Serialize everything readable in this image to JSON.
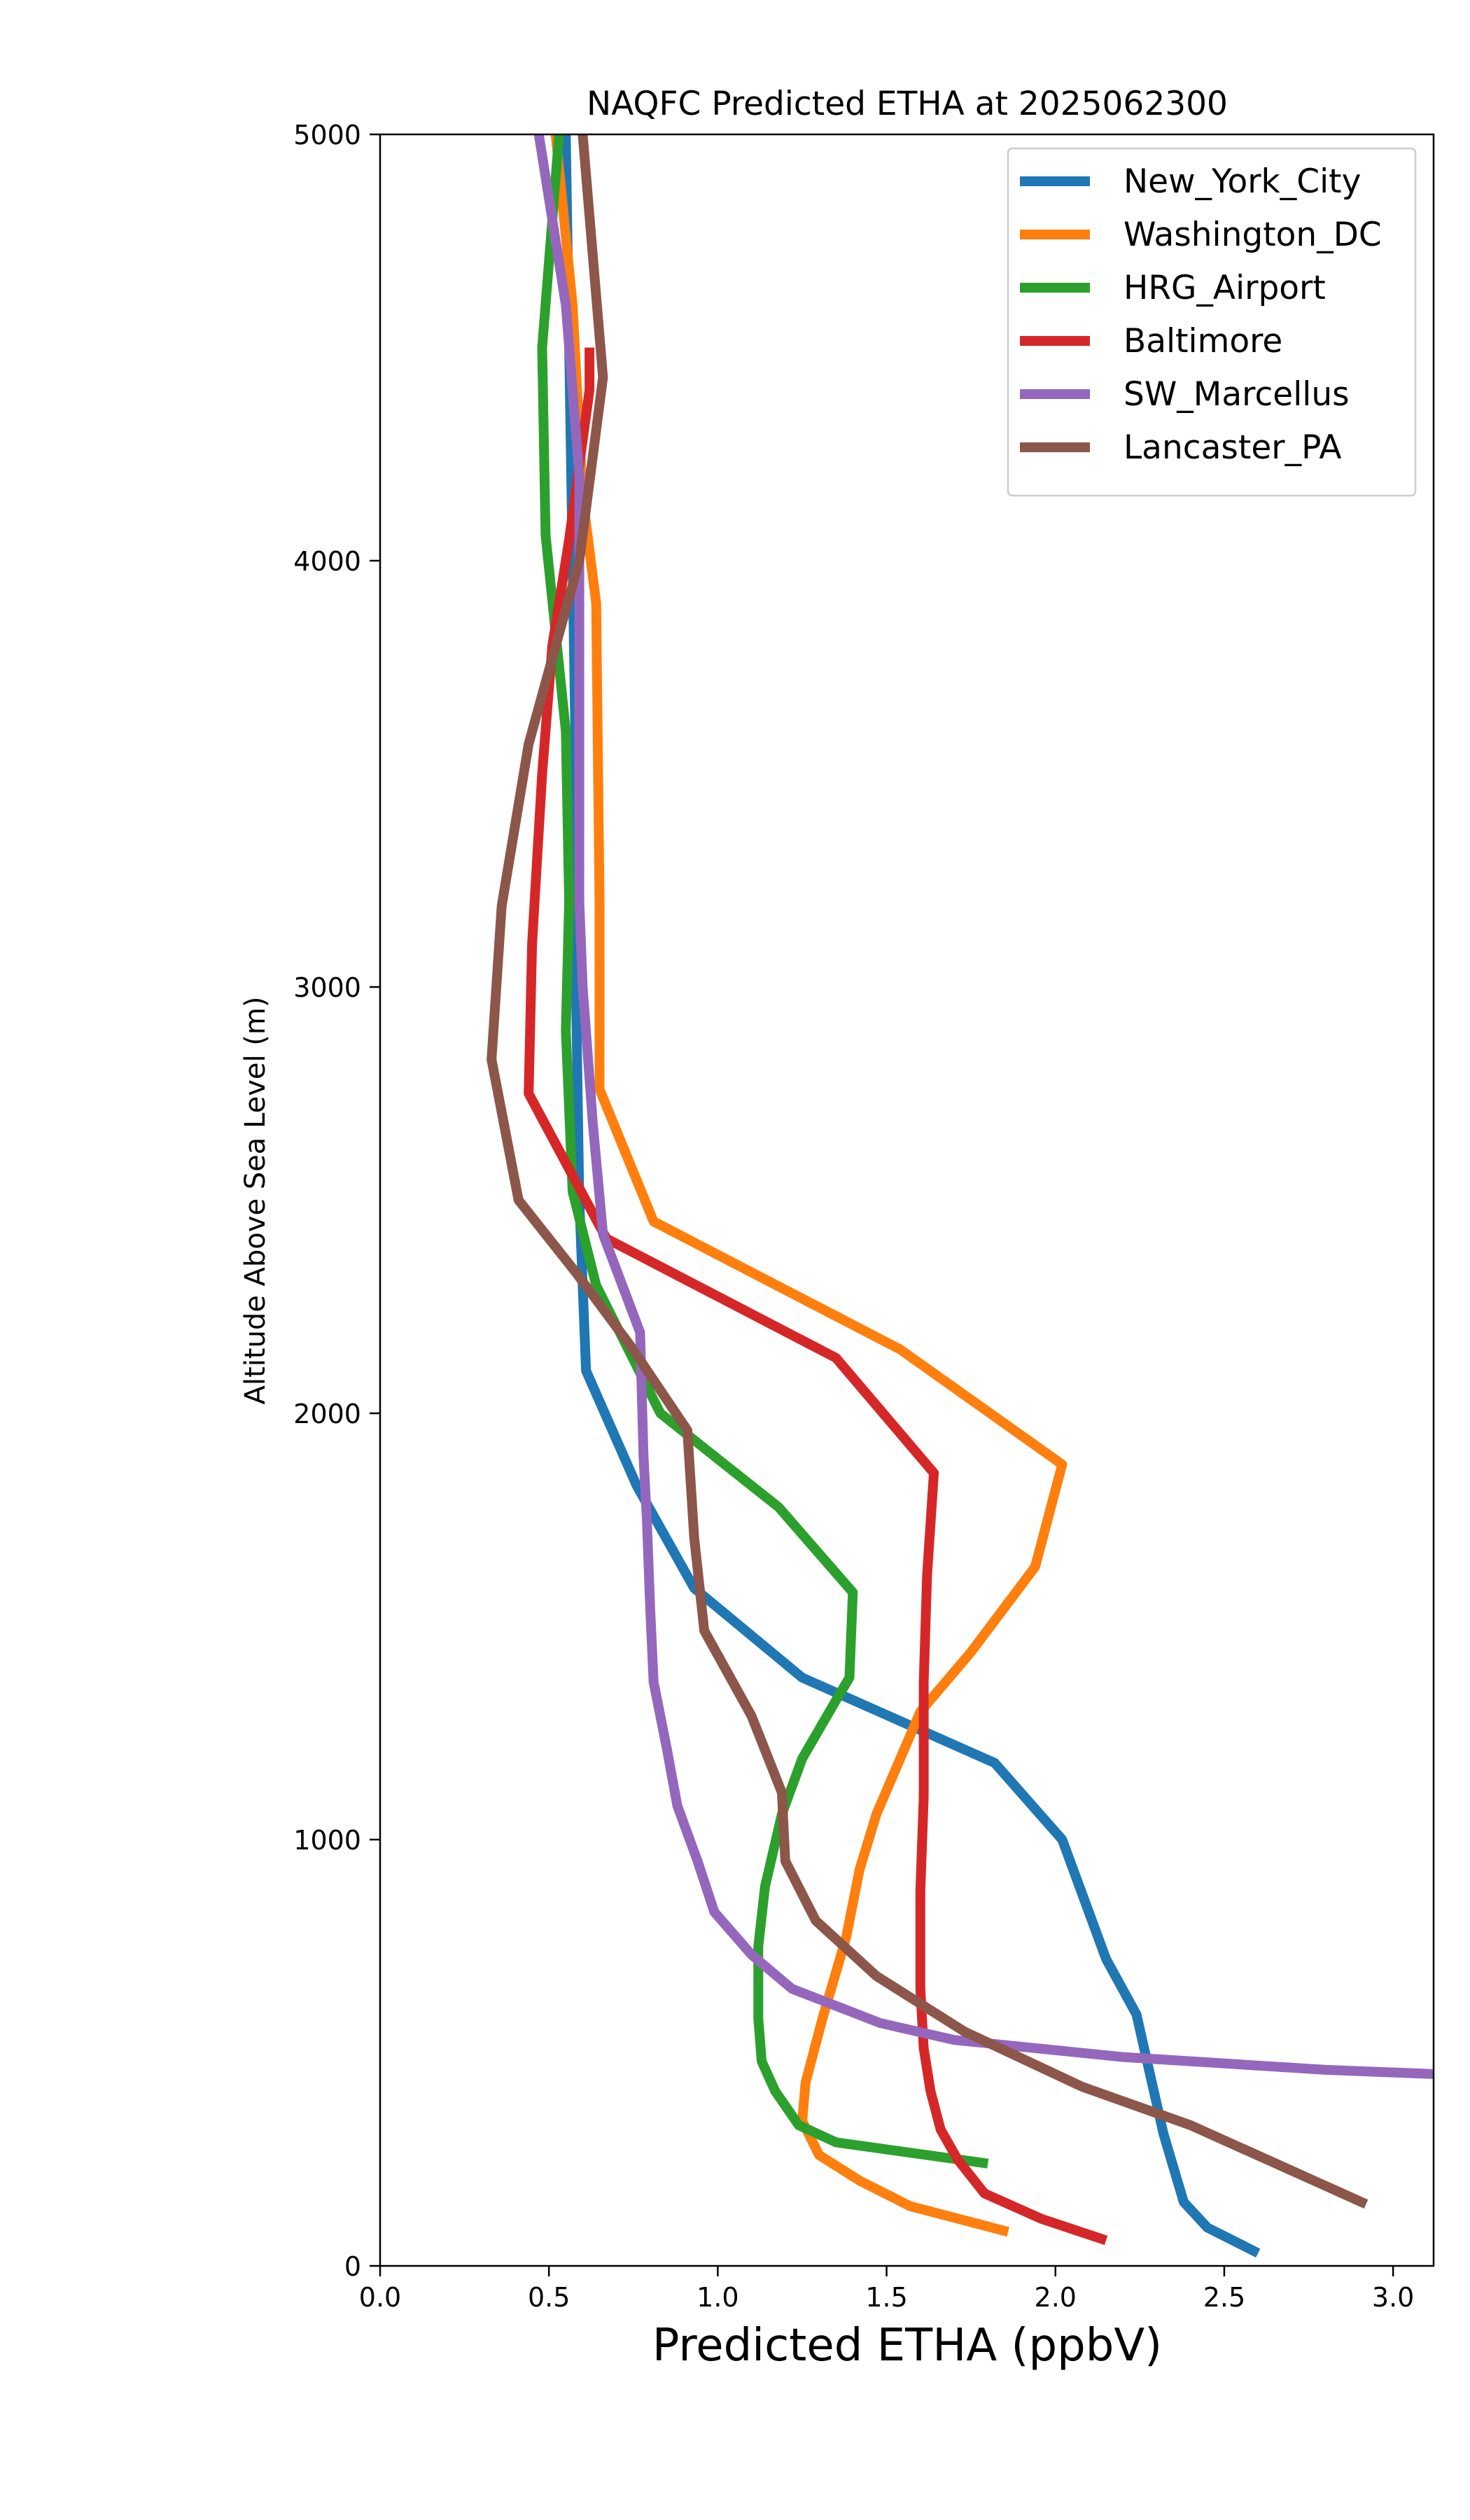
{
  "chart_data": {
    "type": "line",
    "title": "NAQFC Predicted ETHA at 2025062300",
    "xlabel": "Predicted ETHA (ppbV)",
    "ylabel": "Altitude Above Sea Level (m)",
    "xlim": [
      0.0,
      3.12
    ],
    "ylim": [
      0,
      5000
    ],
    "xticks": [
      "0.0",
      "0.5",
      "1.0",
      "1.5",
      "2.0",
      "2.5",
      "3.0"
    ],
    "yticks": [
      "0",
      "1000",
      "2000",
      "3000",
      "4000",
      "5000"
    ],
    "grid": false,
    "legend_position": "upper right",
    "series": [
      {
        "name": "New_York_City",
        "color": "#1f77b4",
        "points": [
          [
            2.6,
            30
          ],
          [
            2.45,
            90
          ],
          [
            2.38,
            150
          ],
          [
            2.32,
            310
          ],
          [
            2.24,
            590
          ],
          [
            2.15,
            720
          ],
          [
            2.02,
            1000
          ],
          [
            1.82,
            1180
          ],
          [
            1.25,
            1380
          ],
          [
            0.93,
            1590
          ],
          [
            0.76,
            1830
          ],
          [
            0.61,
            2100
          ],
          [
            0.59,
            2500
          ],
          [
            0.58,
            3000
          ],
          [
            0.58,
            3500
          ],
          [
            0.57,
            4000
          ],
          [
            0.56,
            4500
          ],
          [
            0.55,
            5000
          ]
        ]
      },
      {
        "name": "Washington_DC",
        "color": "#ff7f0e",
        "points": [
          [
            1.86,
            80
          ],
          [
            1.57,
            140
          ],
          [
            1.42,
            200
          ],
          [
            1.3,
            260
          ],
          [
            1.25,
            340
          ],
          [
            1.26,
            430
          ],
          [
            1.31,
            580
          ],
          [
            1.38,
            770
          ],
          [
            1.42,
            930
          ],
          [
            1.47,
            1060
          ],
          [
            1.6,
            1300
          ],
          [
            1.75,
            1440
          ],
          [
            1.94,
            1640
          ],
          [
            2.02,
            1880
          ],
          [
            1.54,
            2150
          ],
          [
            0.81,
            2450
          ],
          [
            0.65,
            2760
          ],
          [
            0.65,
            3200
          ],
          [
            0.64,
            3900
          ],
          [
            0.6,
            4150
          ],
          [
            0.57,
            4600
          ],
          [
            0.52,
            5000
          ]
        ]
      },
      {
        "name": "HRG_Airport",
        "color": "#2ca02c",
        "points": [
          [
            1.8,
            240
          ],
          [
            1.35,
            290
          ],
          [
            1.24,
            330
          ],
          [
            1.17,
            410
          ],
          [
            1.13,
            480
          ],
          [
            1.12,
            580
          ],
          [
            1.12,
            750
          ],
          [
            1.14,
            890
          ],
          [
            1.19,
            1060
          ],
          [
            1.25,
            1190
          ],
          [
            1.36,
            1340
          ],
          [
            1.39,
            1380
          ],
          [
            1.4,
            1580
          ],
          [
            1.18,
            1780
          ],
          [
            0.83,
            2000
          ],
          [
            0.64,
            2300
          ],
          [
            0.57,
            2520
          ],
          [
            0.55,
            2900
          ],
          [
            0.56,
            3200
          ],
          [
            0.55,
            3600
          ],
          [
            0.49,
            4060
          ],
          [
            0.48,
            4500
          ],
          [
            0.53,
            5000
          ]
        ]
      },
      {
        "name": "Baltimore",
        "color": "#d62728",
        "points": [
          [
            2.15,
            60
          ],
          [
            1.96,
            110
          ],
          [
            1.79,
            170
          ],
          [
            1.71,
            250
          ],
          [
            1.66,
            320
          ],
          [
            1.63,
            410
          ],
          [
            1.61,
            510
          ],
          [
            1.6,
            650
          ],
          [
            1.6,
            880
          ],
          [
            1.61,
            1100
          ],
          [
            1.61,
            1370
          ],
          [
            1.62,
            1620
          ],
          [
            1.64,
            1860
          ],
          [
            1.35,
            2130
          ],
          [
            0.67,
            2410
          ],
          [
            0.44,
            2750
          ],
          [
            0.45,
            3100
          ],
          [
            0.48,
            3500
          ],
          [
            0.51,
            3800
          ],
          [
            0.56,
            4050
          ],
          [
            0.62,
            4400
          ],
          [
            0.62,
            4500
          ]
        ]
      },
      {
        "name": "SW_Marcellus",
        "color": "#9467bd",
        "points": [
          [
            3.12,
            450
          ],
          [
            2.8,
            460
          ],
          [
            2.2,
            490
          ],
          [
            1.7,
            530
          ],
          [
            1.48,
            570
          ],
          [
            1.22,
            650
          ],
          [
            1.1,
            730
          ],
          [
            0.99,
            830
          ],
          [
            0.94,
            950
          ],
          [
            0.88,
            1080
          ],
          [
            0.85,
            1210
          ],
          [
            0.81,
            1370
          ],
          [
            0.8,
            1540
          ],
          [
            0.79,
            1750
          ],
          [
            0.78,
            1900
          ],
          [
            0.77,
            2190
          ],
          [
            0.66,
            2420
          ],
          [
            0.63,
            2680
          ],
          [
            0.6,
            3000
          ],
          [
            0.59,
            3200
          ],
          [
            0.59,
            3600
          ],
          [
            0.59,
            4200
          ],
          [
            0.55,
            4600
          ],
          [
            0.47,
            5000
          ]
        ]
      },
      {
        "name": "Lancaster_PA",
        "color": "#8c564b",
        "points": [
          [
            2.92,
            145
          ],
          [
            2.4,
            330
          ],
          [
            2.08,
            420
          ],
          [
            1.73,
            550
          ],
          [
            1.47,
            680
          ],
          [
            1.29,
            810
          ],
          [
            1.2,
            950
          ],
          [
            1.19,
            1110
          ],
          [
            1.1,
            1290
          ],
          [
            0.96,
            1490
          ],
          [
            0.93,
            1710
          ],
          [
            0.91,
            1960
          ],
          [
            0.74,
            2160
          ],
          [
            0.58,
            2330
          ],
          [
            0.41,
            2500
          ],
          [
            0.33,
            2830
          ],
          [
            0.36,
            3190
          ],
          [
            0.44,
            3570
          ],
          [
            0.52,
            3800
          ],
          [
            0.59,
            4000
          ],
          [
            0.66,
            4430
          ],
          [
            0.6,
            5000
          ]
        ]
      }
    ]
  }
}
